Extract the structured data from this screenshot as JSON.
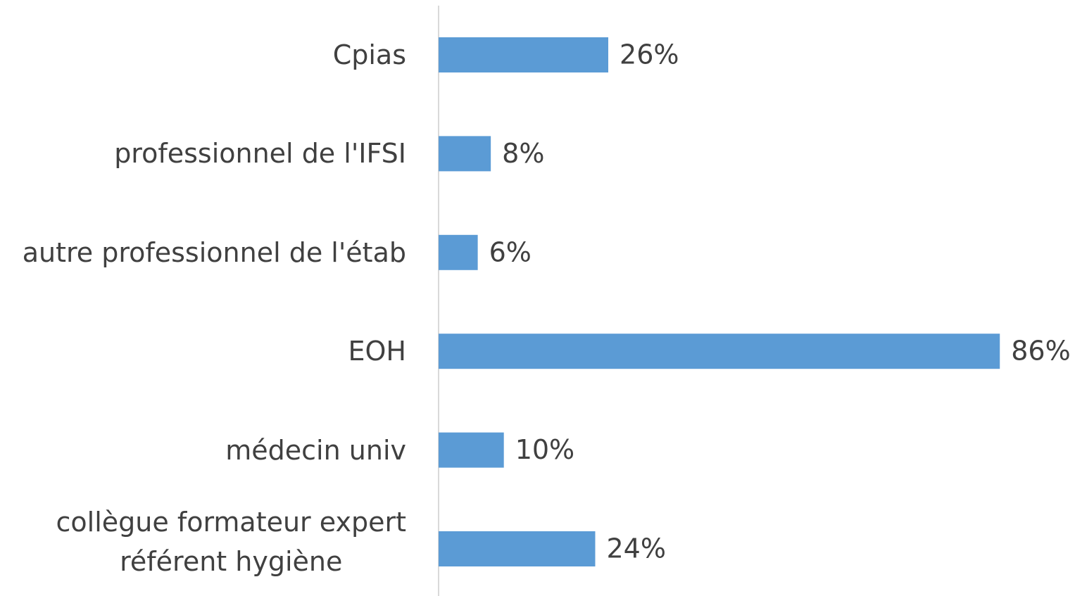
{
  "chart_data": {
    "type": "barh",
    "categories": [
      "Cpias",
      "professionnel de l'IFSI",
      "autre professionnel de l'étab",
      "EOH",
      "médecin univ",
      "collègue formateur expert\nréférent hygiène"
    ],
    "values": [
      26,
      8,
      6,
      86,
      10,
      24
    ],
    "value_labels": [
      "26%",
      "8%",
      "6%",
      "86%",
      "10%",
      "24%"
    ],
    "color": "#5b9bd5"
  }
}
